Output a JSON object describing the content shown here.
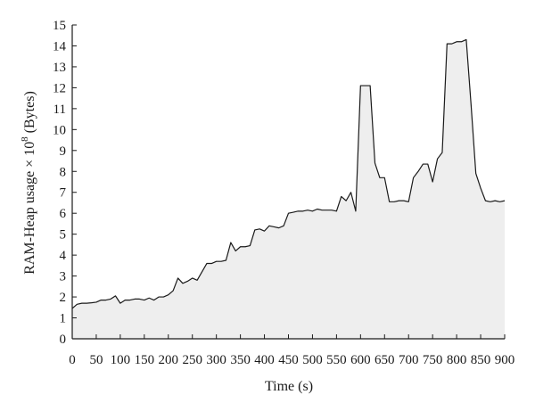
{
  "chart_data": {
    "type": "area",
    "title": "",
    "xlabel": "Time (s)",
    "ylabel_prefix": "RAM-Heap usage × 10",
    "ylabel_exponent": "8",
    "ylabel_suffix": " (Bytes)",
    "xlim": [
      0,
      900
    ],
    "ylim": [
      0,
      15
    ],
    "xticks": [
      0,
      50,
      100,
      150,
      200,
      250,
      300,
      350,
      400,
      450,
      500,
      550,
      600,
      650,
      700,
      750,
      800,
      850,
      900
    ],
    "yticks": [
      0,
      1,
      2,
      3,
      4,
      5,
      6,
      7,
      8,
      9,
      10,
      11,
      12,
      13,
      14,
      15
    ],
    "grid": false,
    "colors": {
      "line": "#1a1a1a",
      "fill": "#eeeeee",
      "axis": "#1a1a1a"
    },
    "series": [
      {
        "x": [
          0,
          10,
          20,
          30,
          40,
          50,
          60,
          70,
          80,
          90,
          100,
          110,
          120,
          130,
          140,
          150,
          160,
          170,
          180,
          190,
          200,
          210,
          220,
          230,
          240,
          250,
          260,
          270,
          280,
          290,
          300,
          310,
          320,
          330,
          340,
          350,
          360,
          370,
          380,
          390,
          400,
          410,
          420,
          430,
          440,
          450,
          460,
          470,
          480,
          490,
          500,
          510,
          520,
          530,
          540,
          550,
          560,
          570,
          580,
          590,
          600,
          610,
          620,
          630,
          640,
          650,
          660,
          670,
          680,
          690,
          700,
          710,
          720,
          730,
          740,
          750,
          760,
          770,
          780,
          790,
          800,
          810,
          820,
          830,
          840,
          850,
          860,
          870,
          880,
          890,
          900
        ],
        "y": [
          1.45,
          1.65,
          1.7,
          1.7,
          1.72,
          1.75,
          1.85,
          1.85,
          1.9,
          2.05,
          1.7,
          1.85,
          1.85,
          1.9,
          1.9,
          1.85,
          1.95,
          1.85,
          2.0,
          2.0,
          2.1,
          2.3,
          2.9,
          2.65,
          2.75,
          2.9,
          2.8,
          3.2,
          3.6,
          3.6,
          3.7,
          3.7,
          3.75,
          4.6,
          4.2,
          4.4,
          4.4,
          4.45,
          5.2,
          5.25,
          5.15,
          5.4,
          5.35,
          5.3,
          5.4,
          6.0,
          6.05,
          6.1,
          6.1,
          6.15,
          6.1,
          6.2,
          6.15,
          6.15,
          6.15,
          6.1,
          6.8,
          6.6,
          7.0,
          6.1,
          12.1,
          12.1,
          12.1,
          8.4,
          7.7,
          7.7,
          6.55,
          6.55,
          6.6,
          6.6,
          6.55,
          7.7,
          8.0,
          8.35,
          8.35,
          7.5,
          8.6,
          8.9,
          14.1,
          14.1,
          14.2,
          14.2,
          14.3,
          11.2,
          7.9,
          7.2,
          6.6,
          6.55,
          6.6,
          6.55,
          6.6
        ]
      }
    ]
  }
}
